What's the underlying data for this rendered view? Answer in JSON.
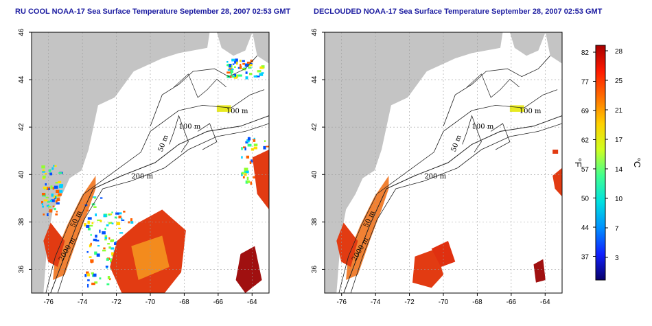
{
  "chart_data": [
    {
      "type": "heatmap",
      "title": "RU COOL NOAA-17 Sea Surface Temperature September 28, 2007 02:53 GMT",
      "x_ticks": [
        "-76",
        "-74",
        "-72",
        "-70",
        "-68",
        "-66",
        "-64"
      ],
      "y_ticks": [
        "36",
        "38",
        "40",
        "42",
        "44",
        "46"
      ],
      "xlim": [
        -77,
        -63
      ],
      "ylim": [
        35,
        46
      ],
      "grid": true,
      "isobath_labels": [
        "100 m",
        "100 m",
        "50 m",
        "200 m",
        "50 m",
        "2000 m"
      ]
    },
    {
      "type": "heatmap",
      "title": "DECLOUDED NOAA-17 Sea Surface Temperature September 28, 2007 02:53 GMT",
      "x_ticks": [
        "-76",
        "-74",
        "-72",
        "-70",
        "-68",
        "-66",
        "-64"
      ],
      "y_ticks": [
        "36",
        "38",
        "40",
        "42",
        "44",
        "46"
      ],
      "xlim": [
        -77,
        -63
      ],
      "ylim": [
        35,
        46
      ],
      "grid": true,
      "isobath_labels": [
        "100 m",
        "100 m",
        "50 m",
        "200 m",
        "50 m",
        "2000 m"
      ]
    }
  ],
  "colorbar": {
    "fahrenheit_ticks": [
      "82",
      "77",
      "69",
      "62",
      "57",
      "50",
      "44",
      "37"
    ],
    "celsius_ticks": [
      "28",
      "25",
      "21",
      "17",
      "14",
      "10",
      "7",
      "3"
    ],
    "fahrenheit_unit": "°F",
    "celsius_unit": "°C",
    "colors": [
      "#08006a",
      "#1020ff",
      "#0090ff",
      "#00e0e0",
      "#40ff90",
      "#d0ff20",
      "#ffd000",
      "#ff7000",
      "#ff1a00",
      "#a80000"
    ]
  },
  "colors": {
    "land": "#c4c4c4",
    "title": "#1a1aa0",
    "warm_water": "#e23b12",
    "shelf_water": "#f07a28"
  }
}
